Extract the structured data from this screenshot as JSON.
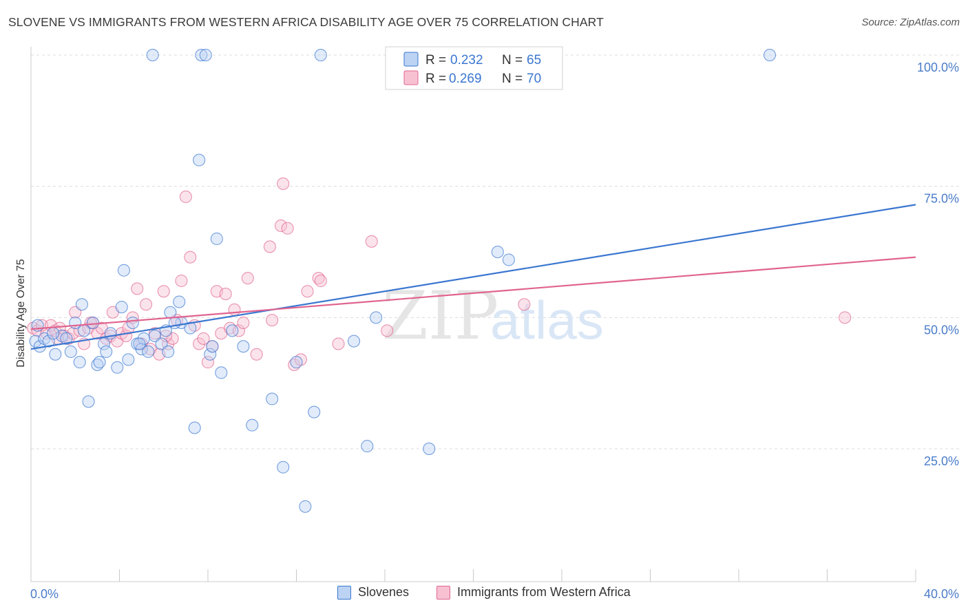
{
  "title": "SLOVENE VS IMMIGRANTS FROM WESTERN AFRICA DISABILITY AGE OVER 75 CORRELATION CHART",
  "source": "Source: ZipAtlas.com",
  "watermark": {
    "zip": "ZIP",
    "atlas": "atlas"
  },
  "colors": {
    "blue": "#3a76d0",
    "blue_fill": "#bcd3f3",
    "pink": "#e0648f",
    "pink_fill": "#f7c1d2",
    "axis_text": "#4a7cc9"
  },
  "legend_top": {
    "items": [
      {
        "r_label": "R =",
        "r_value": "0.232",
        "n_label": "N =",
        "n_value": "65"
      },
      {
        "r_label": "R =",
        "r_value": "0.269",
        "n_label": "N =",
        "n_value": "70"
      }
    ]
  },
  "legend_bottom": [
    "Slovenes",
    "Immigrants from Western Africa"
  ],
  "chart_data": {
    "type": "scatter",
    "title": "SLOVENE VS IMMIGRANTS FROM WESTERN AFRICA DISABILITY AGE OVER 75 CORRELATION CHART",
    "xlabel": "",
    "ylabel": "Disability Age Over 75",
    "xlim": [
      0,
      40
    ],
    "ylim": [
      4,
      103
    ],
    "x_tick_labels": [
      "0.0%",
      "40.0%"
    ],
    "y_ticks": [
      25,
      50,
      75,
      100
    ],
    "y_tick_labels": [
      "25.0%",
      "50.0%",
      "75.0%",
      "100.0%"
    ],
    "grid": true,
    "legend_placement": "top-center",
    "series": [
      {
        "name": "Slovenes",
        "color": "#3a76d0",
        "trend": {
          "x": [
            0,
            40
          ],
          "y": [
            44.0,
            71.5
          ]
        },
        "points": [
          [
            0.2,
            45.5
          ],
          [
            0.4,
            44.5
          ],
          [
            0.6,
            46.0
          ],
          [
            0.8,
            45.5
          ],
          [
            1.1,
            43.0
          ],
          [
            1.4,
            46.5
          ],
          [
            1.6,
            46.0
          ],
          [
            1.8,
            43.5
          ],
          [
            2.0,
            49.0
          ],
          [
            2.2,
            41.5
          ],
          [
            2.3,
            52.5
          ],
          [
            2.6,
            34.0
          ],
          [
            2.8,
            49.0
          ],
          [
            3.0,
            41.0
          ],
          [
            3.1,
            41.5
          ],
          [
            3.3,
            45.0
          ],
          [
            3.4,
            43.5
          ],
          [
            3.6,
            47.0
          ],
          [
            3.9,
            40.5
          ],
          [
            4.1,
            52.0
          ],
          [
            4.2,
            59.0
          ],
          [
            4.4,
            42.0
          ],
          [
            4.6,
            49.0
          ],
          [
            4.8,
            45.0
          ],
          [
            5.0,
            44.0
          ],
          [
            5.1,
            46.0
          ],
          [
            5.3,
            43.5
          ],
          [
            5.6,
            46.5
          ],
          [
            5.9,
            45.0
          ],
          [
            6.1,
            47.5
          ],
          [
            6.2,
            43.5
          ],
          [
            6.3,
            51.0
          ],
          [
            6.7,
            53.0
          ],
          [
            6.8,
            49.0
          ],
          [
            7.2,
            48.0
          ],
          [
            7.4,
            29.0
          ],
          [
            7.6,
            80.0
          ],
          [
            8.1,
            43.0
          ],
          [
            8.2,
            44.5
          ],
          [
            8.4,
            65.0
          ],
          [
            8.6,
            39.5
          ],
          [
            9.1,
            47.5
          ],
          [
            9.6,
            44.5
          ],
          [
            10.0,
            29.5
          ],
          [
            10.9,
            34.5
          ],
          [
            11.4,
            21.5
          ],
          [
            12.0,
            41.5
          ],
          [
            12.4,
            14.0
          ],
          [
            12.8,
            32.0
          ],
          [
            14.6,
            45.5
          ],
          [
            15.2,
            25.5
          ],
          [
            15.6,
            50.0
          ],
          [
            18.0,
            25.0
          ],
          [
            21.1,
            62.5
          ],
          [
            21.6,
            61.0
          ],
          [
            5.5,
            100
          ],
          [
            7.7,
            100
          ],
          [
            7.9,
            100
          ],
          [
            13.1,
            100
          ],
          [
            33.4,
            100
          ],
          [
            0.3,
            48.5
          ],
          [
            1.0,
            47.0
          ],
          [
            2.4,
            47.5
          ],
          [
            4.9,
            45.0
          ],
          [
            6.5,
            49.0
          ]
        ]
      },
      {
        "name": "Immigrants from Western Africa",
        "color": "#e0648f",
        "trend": {
          "x": [
            0,
            40
          ],
          "y": [
            47.8,
            61.5
          ]
        },
        "points": [
          [
            0.1,
            48.0
          ],
          [
            0.3,
            47.5
          ],
          [
            0.5,
            48.5
          ],
          [
            0.7,
            47.0
          ],
          [
            0.9,
            48.5
          ],
          [
            1.1,
            47.5
          ],
          [
            1.3,
            48.0
          ],
          [
            1.5,
            46.5
          ],
          [
            1.7,
            46.0
          ],
          [
            1.9,
            47.0
          ],
          [
            2.0,
            51.0
          ],
          [
            2.2,
            47.5
          ],
          [
            2.4,
            45.0
          ],
          [
            2.6,
            48.0
          ],
          [
            2.8,
            49.0
          ],
          [
            3.0,
            47.0
          ],
          [
            3.2,
            48.0
          ],
          [
            3.4,
            46.0
          ],
          [
            3.6,
            46.5
          ],
          [
            3.7,
            51.0
          ],
          [
            3.9,
            45.5
          ],
          [
            4.1,
            47.0
          ],
          [
            4.3,
            46.5
          ],
          [
            4.6,
            50.0
          ],
          [
            4.8,
            55.5
          ],
          [
            5.0,
            45.0
          ],
          [
            5.2,
            52.5
          ],
          [
            5.4,
            44.0
          ],
          [
            5.6,
            47.0
          ],
          [
            5.8,
            43.0
          ],
          [
            6.0,
            55.0
          ],
          [
            6.2,
            45.0
          ],
          [
            6.4,
            46.0
          ],
          [
            6.6,
            49.5
          ],
          [
            6.8,
            57.0
          ],
          [
            7.0,
            73.0
          ],
          [
            7.2,
            61.5
          ],
          [
            7.4,
            48.5
          ],
          [
            7.6,
            45.0
          ],
          [
            7.8,
            46.0
          ],
          [
            8.0,
            41.5
          ],
          [
            8.2,
            44.5
          ],
          [
            8.4,
            55.0
          ],
          [
            8.6,
            47.0
          ],
          [
            8.8,
            54.5
          ],
          [
            9.0,
            48.0
          ],
          [
            9.2,
            51.5
          ],
          [
            9.4,
            47.5
          ],
          [
            9.6,
            49.0
          ],
          [
            9.8,
            57.5
          ],
          [
            10.2,
            43.0
          ],
          [
            10.8,
            63.5
          ],
          [
            10.9,
            49.5
          ],
          [
            11.3,
            67.5
          ],
          [
            11.6,
            67.0
          ],
          [
            11.9,
            41.0
          ],
          [
            12.2,
            42.0
          ],
          [
            12.5,
            55.0
          ],
          [
            13.0,
            57.5
          ],
          [
            13.1,
            57.0
          ],
          [
            13.9,
            45.0
          ],
          [
            15.4,
            64.5
          ],
          [
            16.1,
            47.5
          ],
          [
            22.3,
            52.5
          ],
          [
            36.8,
            50.0
          ],
          [
            11.4,
            75.5
          ],
          [
            1.2,
            46.0
          ],
          [
            2.7,
            49.0
          ],
          [
            4.4,
            48.0
          ],
          [
            6.1,
            46.5
          ]
        ]
      }
    ]
  }
}
